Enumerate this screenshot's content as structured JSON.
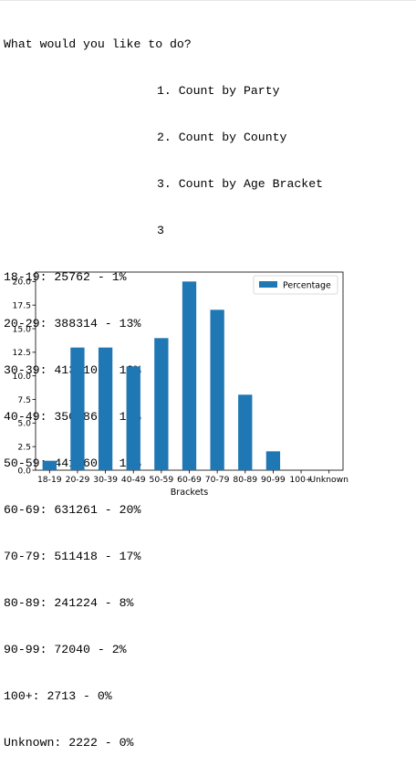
{
  "console": {
    "prompt": "What would you like to do?",
    "menu": [
      "1. Count by Party",
      "2. Count by County",
      "3. Count by Age Bracket"
    ],
    "user_input": "3",
    "results": [
      "18-19: 25762 - 1%",
      "20-29: 388314 - 13%",
      "30-39: 413210 - 13%",
      "40-49: 350086 - 11%",
      "50-59: 441460 - 14%",
      "60-69: 631261 - 20%",
      "70-79: 511418 - 17%",
      "80-89: 241224 - 8%",
      "90-99: 72040 - 2%",
      "100+: 2713 - 0%",
      "Unknown: 2222 - 0%"
    ]
  },
  "chart_data": {
    "type": "bar",
    "categories": [
      "18-19",
      "20-29",
      "30-39",
      "40-49",
      "50-59",
      "60-69",
      "70-79",
      "80-89",
      "90-99",
      "100+",
      "Unknown"
    ],
    "series": [
      {
        "name": "Percentage",
        "values": [
          1,
          13,
          13,
          11,
          14,
          20,
          17,
          8,
          2,
          0,
          0
        ]
      }
    ],
    "xlabel": "Brackets",
    "ylabel": "",
    "ylim": [
      0,
      21
    ],
    "yticks": [
      "0.0",
      "2.5",
      "5.0",
      "7.5",
      "10.0",
      "12.5",
      "15.0",
      "17.5",
      "20.0"
    ],
    "legend_position": "top-right",
    "bar_color": "#1f77b4",
    "grid": false
  }
}
